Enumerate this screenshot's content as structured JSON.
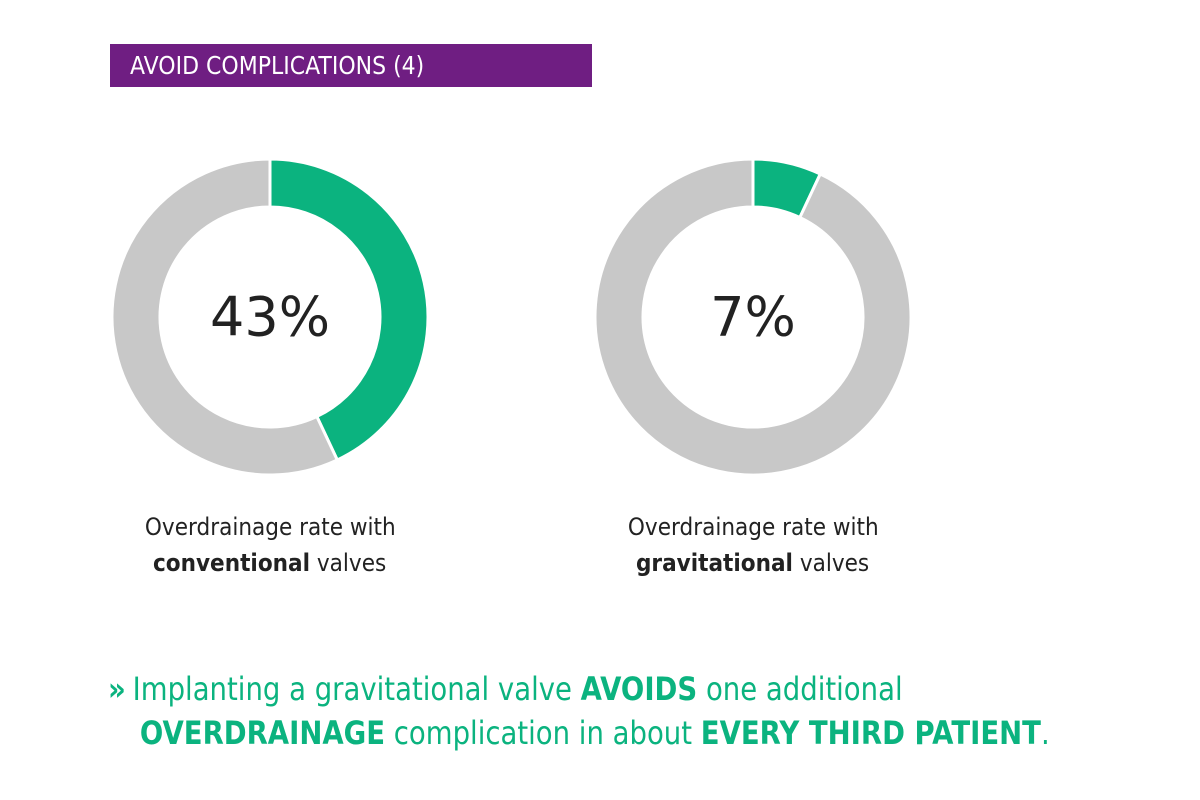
{
  "header": {
    "title": "AVOID COMPLICATIONS (4)"
  },
  "colors": {
    "accent_green": "#0bb37f",
    "ring_gray": "#c8c8c8",
    "header_purple": "#6f1e82"
  },
  "chart_data": [
    {
      "type": "pie",
      "style": "donut",
      "center_label": "43%",
      "values": [
        43,
        57
      ],
      "slice_colors": [
        "#0bb37f",
        "#c8c8c8"
      ],
      "caption": {
        "line1": "Overdrainage rate with",
        "bold": "conventional",
        "rest": " valves"
      }
    },
    {
      "type": "pie",
      "style": "donut",
      "center_label": "7%",
      "values": [
        7,
        93
      ],
      "slice_colors": [
        "#0bb37f",
        "#c8c8c8"
      ],
      "caption": {
        "line1": "Overdrainage rate with",
        "bold": "gravitational",
        "rest": " valves"
      }
    }
  ],
  "conclusion": {
    "icon": "double-chevron-right-icon",
    "icon_glyph": "»",
    "line1_a": "Implanting a gravitational valve ",
    "line1_b": "AVOIDS",
    "line1_c": " one additional",
    "line2_a": "OVERDRAINAGE",
    "line2_b": " complication in about ",
    "line2_c": "EVERY THIRD PATIENT",
    "line2_d": "."
  }
}
